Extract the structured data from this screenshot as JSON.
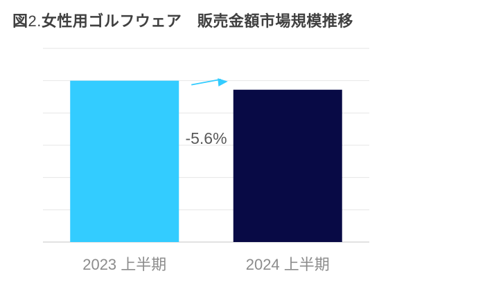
{
  "title": {
    "prefix": "図",
    "number": "2.",
    "text": "女性用ゴルフウェア　販売金額市場規模推移"
  },
  "chart_data": {
    "type": "bar",
    "categories": [
      "2023 上半期",
      "2024 上半期"
    ],
    "values": [
      100,
      94.4
    ],
    "ylim": [
      0,
      120
    ],
    "grid": true,
    "annotations": [
      {
        "text": "-5.6%",
        "kind": "change-arrow",
        "from": "2023 上半期",
        "to": "2024 上半期"
      }
    ],
    "colors": [
      "#33ccff",
      "#080a45"
    ],
    "arrow_color": "#33ccff"
  }
}
